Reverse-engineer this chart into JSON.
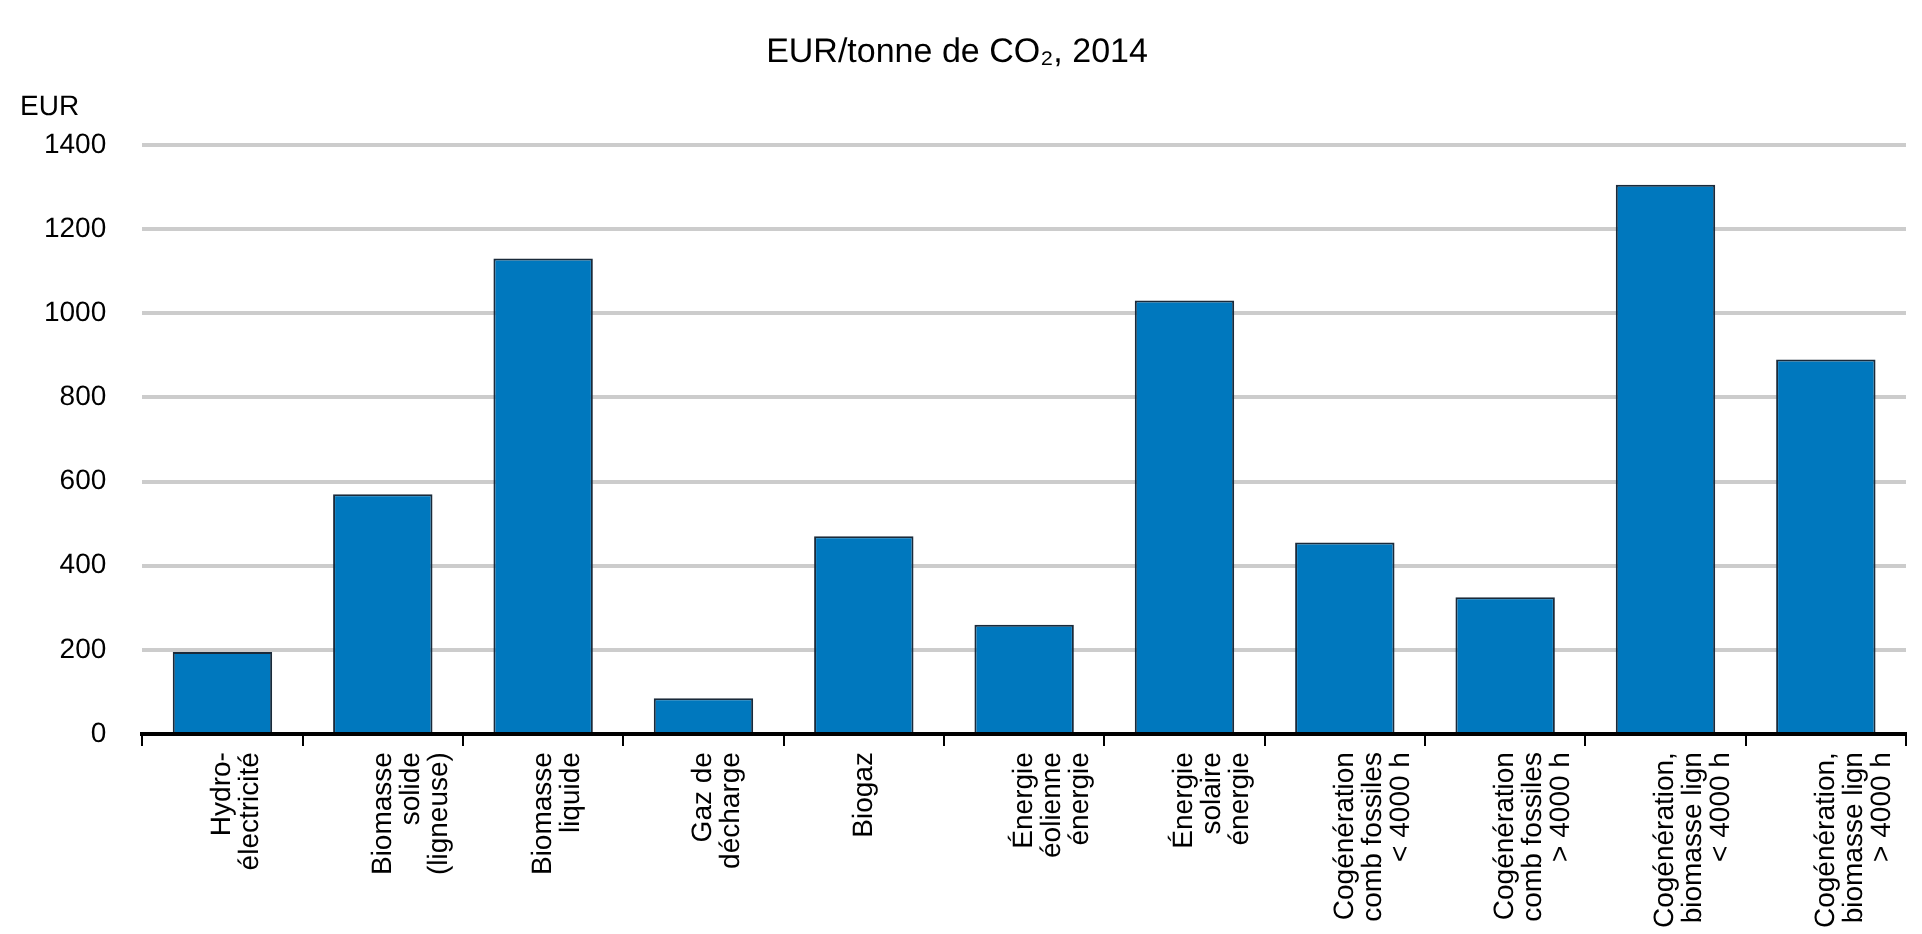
{
  "chart_data": {
    "type": "bar",
    "title": "EUR/tonne de CO₂, 2014",
    "ylabel": "EUR",
    "categories": [
      "Hydro-\nélectricité",
      "Biomasse\nsolide\n(ligneuse)",
      "Biomasse\nliquide",
      "Gaz de\ndécharge",
      "Biogaz",
      "Énergie\néolienne\nénergie",
      "Énergie\nsolaire\nénergie",
      "Cogénération\ncomb fossiles\n< 4000 h",
      "Cogénération\ncomb fossiles\n> 4000 h",
      "Cogénération,\nbiomasse lign\n< 4000 h",
      "Cogénération,\nbiomasse lign\n> 4000 h"
    ],
    "values": [
      195,
      570,
      1130,
      85,
      470,
      260,
      1030,
      455,
      325,
      1305,
      890
    ],
    "color": "#0078be",
    "ylim": [
      0,
      1400
    ],
    "yticks": [
      0,
      200,
      400,
      600,
      800,
      1000,
      1200,
      1400
    ],
    "grid": "y",
    "legend": false
  }
}
